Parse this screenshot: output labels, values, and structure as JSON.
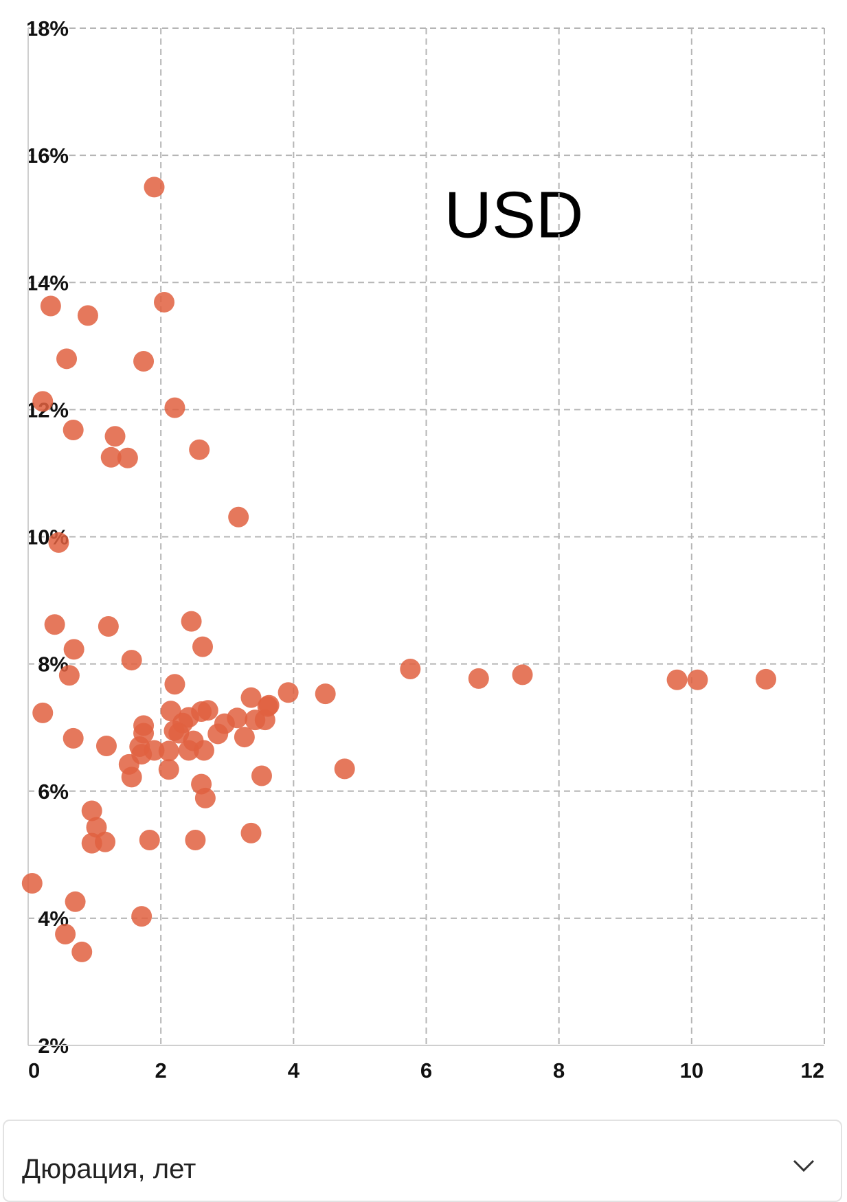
{
  "chart_data": {
    "type": "scatter",
    "annotation": "USD",
    "color": "#e0603f",
    "xlim": [
      0,
      12
    ],
    "xticks": [
      0,
      2,
      4,
      6,
      8,
      10,
      12
    ],
    "ylim": [
      2,
      18
    ],
    "yticks": [
      {
        "value": 2,
        "label": "2%"
      },
      {
        "value": 4,
        "label": "4%"
      },
      {
        "value": 6,
        "label": "6%"
      },
      {
        "value": 8,
        "label": "8%"
      },
      {
        "value": 10,
        "label": "10%"
      },
      {
        "value": 12,
        "label": "12%"
      },
      {
        "value": 14,
        "label": "14%"
      },
      {
        "value": 16,
        "label": "16%"
      },
      {
        "value": 18,
        "label": "18%"
      }
    ],
    "grid": true,
    "x": [
      1.9,
      2.05,
      0.34,
      0.9,
      0.58,
      1.74,
      0.22,
      2.21,
      0.68,
      1.31,
      2.58,
      1.25,
      1.5,
      3.17,
      0.46,
      0.4,
      1.21,
      2.46,
      0.69,
      2.63,
      1.56,
      5.76,
      0.62,
      6.79,
      7.45,
      9.78,
      10.09,
      11.12,
      2.21,
      3.92,
      4.48,
      3.36,
      3.63,
      3.61,
      0.22,
      2.15,
      2.61,
      2.71,
      2.42,
      3.15,
      2.33,
      2.96,
      3.42,
      3.57,
      1.74,
      2.2,
      1.74,
      2.86,
      2.27,
      0.68,
      3.26,
      2.49,
      1.18,
      1.68,
      1.9,
      2.12,
      2.42,
      2.65,
      1.71,
      1.52,
      2.12,
      4.77,
      1.56,
      3.52,
      2.61,
      2.67,
      0.96,
      1.03,
      3.36,
      0.96,
      1.16,
      1.83,
      2.52,
      0.06,
      0.71,
      1.71,
      0.56,
      0.81
    ],
    "values": [
      15.5,
      13.69,
      13.63,
      13.48,
      12.8,
      12.76,
      12.13,
      12.03,
      11.68,
      11.58,
      11.37,
      11.25,
      11.24,
      10.31,
      9.91,
      8.62,
      8.59,
      8.67,
      8.23,
      8.27,
      8.06,
      7.92,
      7.82,
      7.77,
      7.83,
      7.75,
      7.75,
      7.76,
      7.68,
      7.55,
      7.53,
      7.47,
      7.35,
      7.33,
      7.23,
      7.26,
      7.25,
      7.27,
      7.16,
      7.15,
      7.07,
      7.06,
      7.12,
      7.12,
      7.03,
      6.95,
      6.91,
      6.9,
      6.91,
      6.83,
      6.85,
      6.79,
      6.71,
      6.7,
      6.64,
      6.63,
      6.64,
      6.64,
      6.58,
      6.42,
      6.34,
      6.35,
      6.22,
      6.24,
      6.11,
      5.89,
      5.69,
      5.43,
      5.34,
      5.18,
      5.2,
      5.23,
      5.23,
      4.55,
      4.26,
      4.03,
      3.75,
      3.47
    ]
  },
  "dropdown": {
    "label": "Дюрация, лет"
  }
}
